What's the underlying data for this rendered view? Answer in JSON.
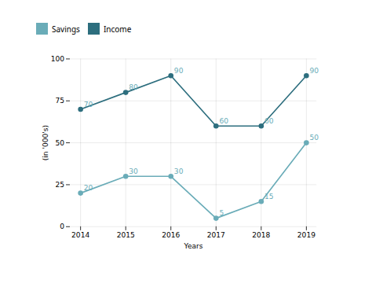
{
  "chart_data": {
    "type": "line",
    "x": [
      2014,
      2015,
      2016,
      2017,
      2018,
      2019
    ],
    "series": [
      {
        "name": "Savings",
        "color": "#6aacb8",
        "marker": "circle",
        "line_style": "solid",
        "values": [
          20,
          30,
          30,
          5,
          15,
          50
        ]
      },
      {
        "name": "Income",
        "color": "#2d6e7e",
        "marker": "circle",
        "line_style": "solid",
        "values": [
          70,
          80,
          90,
          60,
          60,
          90
        ]
      }
    ],
    "xlabel": "Years",
    "ylabel": "(in '000's)",
    "xlim": [
      2014,
      2019
    ],
    "xticks": [
      2014,
      2015,
      2016,
      2017,
      2018,
      2019
    ],
    "ylim": [
      0,
      100
    ],
    "yticks": [
      0,
      25,
      50,
      75,
      100
    ],
    "grid": true,
    "legend": "top",
    "data_labels": true
  }
}
